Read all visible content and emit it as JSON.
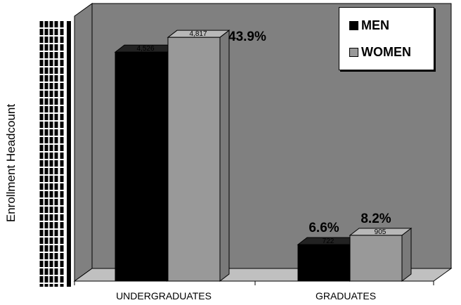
{
  "chart_data": {
    "type": "bar",
    "ylabel": "Enrollment Headcount",
    "categories": [
      "UNDERGRADUATES",
      "GRADUATES"
    ],
    "series": [
      {
        "name": "MEN",
        "values": [
          4526,
          722
        ],
        "labels": [
          "4,526",
          "722"
        ],
        "percent_labels": [
          "",
          "6.6%"
        ],
        "color": "#000000"
      },
      {
        "name": "WOMEN",
        "values": [
          4817,
          905
        ],
        "labels": [
          "4,817",
          "905"
        ],
        "percent_labels": [
          "43.9%",
          "8.2%"
        ],
        "color": "#999999"
      }
    ],
    "ylim": [
      0,
      5000
    ],
    "grid": false,
    "legend": "top-right",
    "colors": {
      "wall": "#808080",
      "floor": "#c0c0c0",
      "men": "#000000",
      "women": "#999999"
    }
  }
}
